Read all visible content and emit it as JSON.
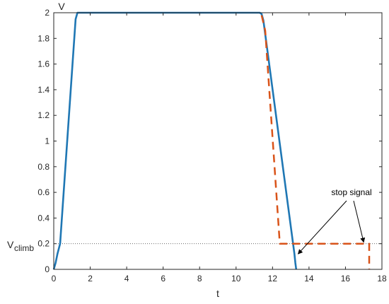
{
  "chart_data": {
    "type": "line",
    "title": "",
    "xlabel": "t",
    "ylabel": "V",
    "xlim": [
      0,
      18
    ],
    "ylim": [
      0,
      2
    ],
    "x_ticks": [
      0,
      2,
      4,
      6,
      8,
      10,
      12,
      14,
      16,
      18
    ],
    "y_ticks": [
      0,
      0.2,
      0.4,
      0.6,
      0.8,
      1,
      1.2,
      1.4,
      1.6,
      1.8,
      2
    ],
    "x_tick_labels": [
      "0",
      "2",
      "4",
      "6",
      "8",
      "10",
      "12",
      "14",
      "16",
      "18"
    ],
    "y_tick_labels": [
      "0",
      "0.2",
      "0.4",
      "0.6",
      "0.8",
      "1",
      "1.2",
      "1.4",
      "1.6",
      "1.8",
      "2"
    ],
    "grid": false,
    "series": [
      {
        "color": "#1f77b4",
        "style": "solid",
        "x": [
          0,
          0.1,
          0.2,
          0.35,
          1.2,
          1.3,
          11.3,
          11.4,
          11.5,
          13.2,
          13.25,
          13.3
        ],
        "y": [
          0,
          0.05,
          0.12,
          0.2,
          1.95,
          2.0,
          2.0,
          1.99,
          1.94,
          0.12,
          0.05,
          0
        ]
      },
      {
        "color": "#d95319",
        "style": "dashed",
        "x": [
          11.4,
          11.6,
          12.4,
          12.6,
          17.3,
          17.3
        ],
        "y": [
          1.98,
          1.86,
          0.2,
          0.2,
          0.2,
          0
        ]
      }
    ],
    "reference_line": {
      "y": 0.2,
      "style": "dotted",
      "label_main": "V",
      "label_sub": "climb"
    },
    "annotation": {
      "text": "stop signal",
      "arrow_tips": [
        {
          "x": 13.4,
          "y": 0.12
        },
        {
          "x": 17.0,
          "y": 0.2
        }
      ]
    }
  }
}
